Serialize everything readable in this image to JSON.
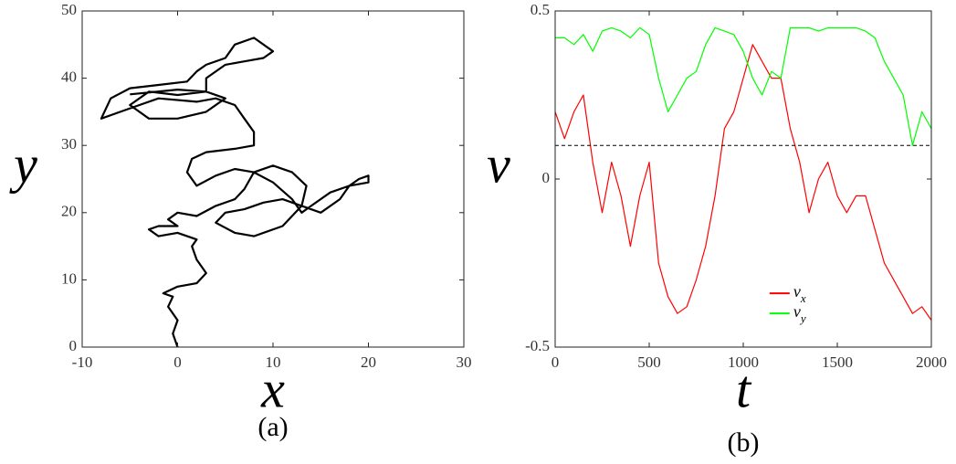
{
  "chart_data": [
    {
      "type": "line",
      "xlabel": "x",
      "ylabel": "y",
      "caption": "(a)",
      "xlim": [
        -10,
        30
      ],
      "xticks": [
        -10,
        0,
        10,
        20,
        30
      ],
      "ylim": [
        0,
        50
      ],
      "yticks": [
        0,
        10,
        20,
        30,
        40,
        50
      ],
      "series": [
        {
          "color": "#000000",
          "x": [
            0,
            -0.5,
            0,
            -1,
            -0.5,
            -1.5,
            0,
            2,
            3,
            2,
            1.5,
            2,
            0,
            -2,
            -3,
            -2,
            0,
            -1,
            0,
            2,
            4,
            6,
            7,
            8,
            10,
            12,
            13.5,
            13,
            11,
            8,
            6,
            4,
            5,
            7,
            9,
            11,
            13,
            15,
            17,
            18,
            19,
            20,
            20,
            18,
            16,
            14,
            13,
            12,
            10,
            8,
            6,
            4,
            2,
            1,
            1.5,
            3,
            6,
            8,
            8,
            7,
            6,
            4,
            2,
            -2,
            -4,
            -6,
            -8,
            -7,
            -5,
            -2,
            1,
            2,
            3,
            5,
            6,
            8,
            10,
            9,
            7,
            5,
            3,
            3,
            0,
            -3,
            -5,
            -3,
            0,
            3,
            5,
            3,
            0,
            -5
          ],
          "values": [
            0,
            2,
            4,
            6,
            7.5,
            8,
            9,
            9.5,
            11,
            13,
            15,
            16,
            17,
            16.5,
            17.5,
            18,
            18,
            19,
            20,
            19.5,
            21,
            22,
            23.5,
            26,
            27,
            26,
            24,
            21,
            18,
            16.5,
            17,
            18.5,
            20,
            20.5,
            21.5,
            22,
            21,
            20,
            22,
            24,
            25,
            25.5,
            24.5,
            24,
            23,
            21,
            20,
            22,
            24.5,
            26,
            26.5,
            25.5,
            24,
            26,
            28,
            29,
            29.5,
            30,
            32,
            34,
            36,
            37,
            36.5,
            37,
            36,
            35,
            34,
            37,
            38.5,
            39,
            39.5,
            41,
            42,
            43,
            45,
            46,
            44,
            43,
            42.5,
            42,
            40,
            38,
            37.5,
            38,
            36,
            34,
            34,
            35,
            37,
            38,
            38.3,
            37.6
          ]
        }
      ]
    },
    {
      "type": "line",
      "xlabel": "t",
      "ylabel": "v",
      "caption": "(b)",
      "xlim": [
        0,
        2000
      ],
      "xticks": [
        0,
        500,
        1000,
        1500,
        2000
      ],
      "ylim": [
        -0.5,
        0.5
      ],
      "yticks": [
        -0.5,
        0,
        0.5
      ],
      "hline": 0.1,
      "legend": "lower center",
      "x": [
        0,
        50,
        100,
        150,
        200,
        250,
        300,
        350,
        400,
        450,
        500,
        550,
        600,
        650,
        700,
        750,
        800,
        850,
        900,
        950,
        1000,
        1050,
        1100,
        1150,
        1200,
        1250,
        1300,
        1350,
        1400,
        1450,
        1500,
        1550,
        1600,
        1650,
        1700,
        1750,
        1800,
        1850,
        1900,
        1950,
        2000
      ],
      "series": [
        {
          "name": "v_x",
          "color": "#ff0000",
          "values": [
            0.2,
            0.12,
            0.2,
            0.25,
            0.05,
            -0.1,
            0.05,
            -0.05,
            -0.2,
            -0.05,
            0.05,
            -0.25,
            -0.35,
            -0.4,
            -0.38,
            -0.3,
            -0.2,
            -0.05,
            0.15,
            0.2,
            0.3,
            0.4,
            0.35,
            0.3,
            0.3,
            0.15,
            0.05,
            -0.1,
            0,
            0.05,
            -0.05,
            -0.1,
            -0.05,
            -0.05,
            -0.15,
            -0.25,
            -0.3,
            -0.35,
            -0.4,
            -0.38,
            -0.42
          ]
        },
        {
          "name": "v_y",
          "color": "#00ff00",
          "values": [
            0.42,
            0.42,
            0.4,
            0.43,
            0.38,
            0.44,
            0.45,
            0.44,
            0.42,
            0.45,
            0.43,
            0.3,
            0.2,
            0.25,
            0.3,
            0.32,
            0.4,
            0.45,
            0.44,
            0.43,
            0.38,
            0.3,
            0.25,
            0.32,
            0.3,
            0.45,
            0.45,
            0.45,
            0.44,
            0.45,
            0.45,
            0.45,
            0.45,
            0.44,
            0.42,
            0.35,
            0.3,
            0.25,
            0.1,
            0.2,
            0.15
          ]
        }
      ]
    }
  ]
}
